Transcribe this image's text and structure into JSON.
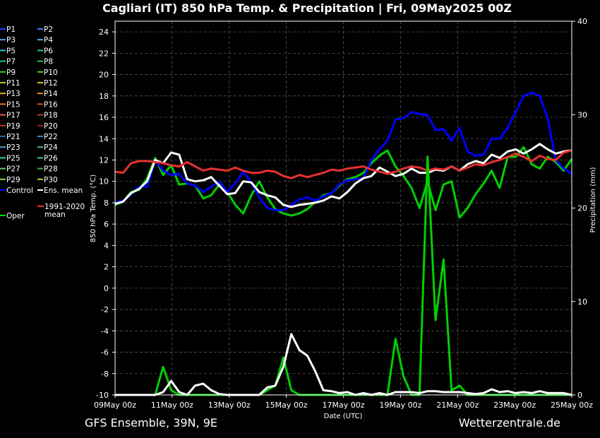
{
  "chart_data": {
    "type": "line",
    "title": "Cagliari  (IT)  850 hPa Temp. & Precipitation | Fri, 09May2025 00Z",
    "xlabel": "Date (UTC)",
    "ylabel": "850 hPa Temp. (°C)",
    "y2label": "Precipitation (mm)",
    "ylim": [
      -10,
      25
    ],
    "y2lim": [
      0,
      40
    ],
    "yticks": [
      -10,
      -8,
      -6,
      -4,
      -2,
      0,
      2,
      4,
      6,
      8,
      10,
      12,
      14,
      16,
      18,
      20,
      22,
      24
    ],
    "y2ticks": [
      0,
      10,
      20,
      30,
      40
    ],
    "xticks": [
      "09May 00z",
      "11May 00z",
      "13May 00z",
      "15May 00z",
      "17May 00z",
      "19May 00z",
      "21May 00z",
      "23May 00z",
      "25May 00z"
    ],
    "grid": true,
    "legend_position": "left",
    "legend": [
      {
        "name": "P1",
        "color": "#1c3cff"
      },
      {
        "name": "P2",
        "color": "#3c7cff"
      },
      {
        "name": "P3",
        "color": "#4fa0ff"
      },
      {
        "name": "P4",
        "color": "#40b8e8"
      },
      {
        "name": "P5",
        "color": "#30c0c8"
      },
      {
        "name": "P6",
        "color": "#20c8a0"
      },
      {
        "name": "P7",
        "color": "#20c878"
      },
      {
        "name": "P8",
        "color": "#30c050"
      },
      {
        "name": "P9",
        "color": "#40d030"
      },
      {
        "name": "P10",
        "color": "#60d020"
      },
      {
        "name": "P11",
        "color": "#a0d020"
      },
      {
        "name": "P12",
        "color": "#d0c020"
      },
      {
        "name": "P13",
        "color": "#e0b020"
      },
      {
        "name": "P14",
        "color": "#e89020"
      },
      {
        "name": "P15",
        "color": "#e07830"
      },
      {
        "name": "P16",
        "color": "#c06020"
      },
      {
        "name": "P17",
        "color": "#d86040"
      },
      {
        "name": "P18",
        "color": "#b04030"
      },
      {
        "name": "P19",
        "color": "#c03020"
      },
      {
        "name": "P20",
        "color": "#a02020"
      },
      {
        "name": "P21",
        "color": "#2060c0"
      },
      {
        "name": "P22",
        "color": "#3090d0"
      },
      {
        "name": "P23",
        "color": "#40a8d8"
      },
      {
        "name": "P24",
        "color": "#50b8b8"
      },
      {
        "name": "P25",
        "color": "#30d0a0"
      },
      {
        "name": "P26",
        "color": "#38c890"
      },
      {
        "name": "P27",
        "color": "#50d070"
      },
      {
        "name": "P28",
        "color": "#40b050"
      },
      {
        "name": "P29",
        "color": "#90d040"
      },
      {
        "name": "P30",
        "color": "#c8c030"
      },
      {
        "name": "Control",
        "color": "#0000ff"
      },
      {
        "name": "Ens. mean",
        "color": "#ffffff"
      },
      {
        "name": "Oper",
        "color": "#00e000"
      },
      {
        "name": "1991-2020 mean",
        "color": "#ff3030"
      }
    ],
    "series": [
      {
        "name": "Oper",
        "axis": "temp",
        "values": [
          7.8,
          8.1,
          9.0,
          9.2,
          10.3,
          12.2,
          10.6,
          11.5,
          9.7,
          9.8,
          9.6,
          8.4,
          8.7,
          9.7,
          9.0,
          7.8,
          7.0,
          8.7,
          10.0,
          8.5,
          7.4,
          7.0,
          6.8,
          7.0,
          7.4,
          8.1,
          8.7,
          8.9,
          9.6,
          10.2,
          10.4,
          10.8,
          11.7,
          12.4,
          12.9,
          11.4,
          10.5,
          9.4,
          7.5,
          10.0,
          7.3,
          9.7,
          10.0,
          6.6,
          7.5,
          8.8,
          9.8,
          11.0,
          9.4,
          12.3,
          12.3,
          13.2,
          11.6,
          11.2,
          12.3,
          11.8,
          11.0,
          12.1
        ]
      },
      {
        "name": "Control",
        "axis": "temp",
        "values": [
          8.0,
          8.2,
          8.8,
          9.5,
          9.5,
          12.0,
          11.0,
          10.6,
          10.7,
          9.8,
          9.6,
          9.0,
          9.5,
          10.0,
          9.0,
          9.8,
          10.9,
          9.9,
          8.5,
          7.5,
          7.3,
          7.3,
          7.8,
          8.3,
          8.5,
          8.2,
          8.6,
          8.9,
          9.7,
          10.1,
          10.2,
          10.3,
          12.0,
          13.0,
          13.8,
          15.8,
          15.9,
          16.5,
          16.3,
          16.2,
          14.8,
          14.9,
          13.8,
          15.0,
          12.8,
          12.4,
          12.5,
          14.0,
          14.0,
          15.0,
          16.5,
          18.0,
          18.3,
          18.0,
          15.9,
          12.0,
          11.2,
          10.7
        ]
      },
      {
        "name": "Ens. mean",
        "axis": "temp",
        "values": [
          7.9,
          8.1,
          8.9,
          9.3,
          10.0,
          12.0,
          11.7,
          12.7,
          12.5,
          10.2,
          10.0,
          10.1,
          10.4,
          9.6,
          8.8,
          8.9,
          10.0,
          9.9,
          9.0,
          8.7,
          8.5,
          7.8,
          7.6,
          7.8,
          7.9,
          8.0,
          8.2,
          8.6,
          8.4,
          9.0,
          9.8,
          10.3,
          10.5,
          11.3,
          10.9,
          10.5,
          10.7,
          11.2,
          10.8,
          10.8,
          11.1,
          11.0,
          11.4,
          11.0,
          11.6,
          11.9,
          11.7,
          12.5,
          12.2,
          12.8,
          13.0,
          12.6,
          13.0,
          13.5,
          13.0,
          12.6,
          12.8,
          12.9
        ]
      },
      {
        "name": "1991-2020 mean",
        "axis": "temp",
        "values": [
          10.9,
          10.8,
          11.7,
          11.9,
          11.9,
          11.8,
          11.7,
          11.5,
          11.4,
          11.8,
          11.4,
          11.0,
          11.2,
          11.1,
          11.0,
          11.3,
          11.0,
          10.8,
          10.8,
          11.0,
          10.9,
          10.5,
          10.3,
          10.6,
          10.4,
          10.6,
          10.8,
          11.1,
          11.0,
          11.2,
          11.3,
          11.4,
          11.1,
          10.9,
          10.7,
          10.9,
          11.2,
          11.4,
          11.3,
          11.0,
          11.2,
          11.1,
          11.4,
          11.0,
          11.3,
          11.6,
          11.5,
          11.8,
          12.0,
          12.3,
          12.6,
          12.3,
          11.9,
          12.4,
          12.1,
          12.0,
          12.7,
          12.9
        ]
      },
      {
        "name": "Oper precipitation",
        "axis": "precip",
        "values": [
          0,
          0,
          0,
          0,
          0,
          0,
          3.0,
          0.5,
          0,
          0,
          0,
          0,
          0,
          0,
          0,
          0,
          0,
          0,
          0,
          0.5,
          1.0,
          4.0,
          0.5,
          0,
          0,
          0,
          0,
          0,
          0,
          0,
          0,
          0,
          0,
          0,
          0,
          6.0,
          2.0,
          0,
          0,
          25.5,
          8.0,
          14.5,
          0.5,
          1.0,
          0,
          0,
          0,
          0,
          0,
          0,
          0,
          0,
          0,
          0,
          0,
          0,
          0,
          0
        ]
      },
      {
        "name": "Ens. mean precipitation",
        "axis": "precip",
        "values": [
          0,
          0,
          0,
          0,
          0,
          0,
          0.3,
          1.5,
          0.3,
          0,
          1.0,
          1.2,
          0.5,
          0.1,
          0,
          0,
          0,
          0,
          0,
          0.8,
          1.0,
          3.0,
          6.5,
          4.8,
          4.2,
          2.5,
          0.5,
          0.4,
          0.2,
          0.3,
          0,
          0.2,
          0,
          0.2,
          0,
          0.3,
          0.3,
          0.3,
          0.2,
          0.4,
          0.4,
          0.3,
          0.3,
          0.3,
          0.2,
          0.1,
          0.2,
          0.6,
          0.3,
          0.4,
          0.2,
          0.3,
          0.2,
          0.4,
          0.2,
          0.2,
          0.2,
          0
        ]
      }
    ]
  },
  "footer": {
    "left": "GFS Ensemble, 39N, 9E",
    "right": "Wetterzentrale.de"
  }
}
